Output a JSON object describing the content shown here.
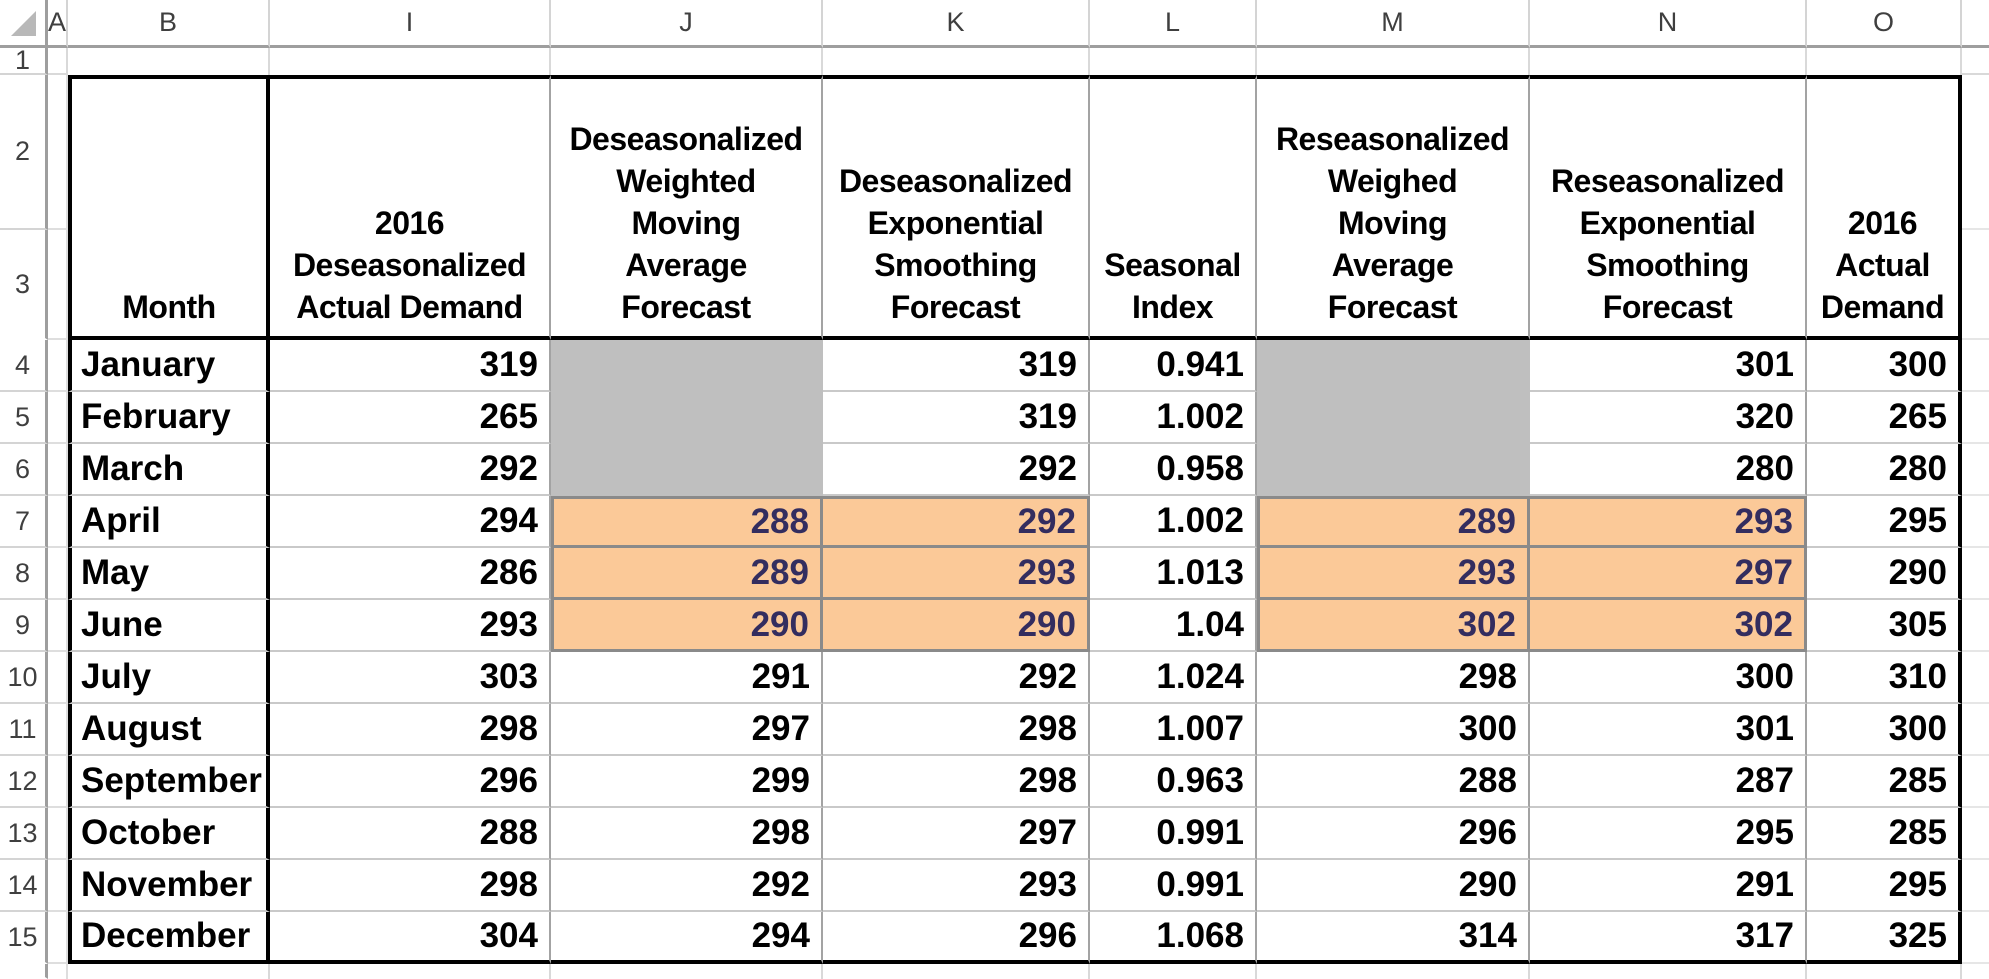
{
  "sheet": {
    "colors": {
      "gray_fill": "#bfbfbf",
      "orange_fill": "#fbc998",
      "orange_text": "#332d5f"
    },
    "column_letters": [
      "A",
      "B",
      "I",
      "J",
      "K",
      "L",
      "M",
      "N",
      "O"
    ],
    "row_labels": {
      "r1": "1",
      "r2": "2",
      "r3": "3"
    },
    "headers": {
      "b": "Month",
      "i": "2016\nDeseasonalized\nActual Demand",
      "j": "Deseasonalized\nWeighted\nMoving\nAverage\nForecast",
      "k": "Deseasonalized\nExponential\nSmoothing\nForecast",
      "l": "Seasonal\nIndex",
      "m": "Reseasonalized\nWeighed\nMoving\nAverage\nForecast",
      "n": "Reseasonalized\nExponential\nSmoothing\nForecast",
      "o": "2016\nActual\nDemand"
    },
    "rows": [
      {
        "num": "4",
        "month": "January",
        "values": {
          "i": "319",
          "j": "",
          "k": "319",
          "l": "0.941",
          "m": "",
          "n": "301",
          "o": "300"
        },
        "fills": {
          "j": "gray",
          "m": "gray"
        }
      },
      {
        "num": "5",
        "month": "February",
        "values": {
          "i": "265",
          "j": "",
          "k": "319",
          "l": "1.002",
          "m": "",
          "n": "320",
          "o": "265"
        },
        "fills": {
          "j": "gray",
          "m": "gray"
        }
      },
      {
        "num": "6",
        "month": "March",
        "values": {
          "i": "292",
          "j": "",
          "k": "292",
          "l": "0.958",
          "m": "",
          "n": "280",
          "o": "280"
        },
        "fills": {
          "j": "gray",
          "m": "gray"
        }
      },
      {
        "num": "7",
        "month": "April",
        "values": {
          "i": "294",
          "j": "288",
          "k": "292",
          "l": "1.002",
          "m": "289",
          "n": "293",
          "o": "295"
        },
        "fills": {
          "j": "orange",
          "k": "orange",
          "m": "orange",
          "n": "orange"
        }
      },
      {
        "num": "8",
        "month": "May",
        "values": {
          "i": "286",
          "j": "289",
          "k": "293",
          "l": "1.013",
          "m": "293",
          "n": "297",
          "o": "290"
        },
        "fills": {
          "j": "orange",
          "k": "orange",
          "m": "orange",
          "n": "orange"
        }
      },
      {
        "num": "9",
        "month": "June",
        "values": {
          "i": "293",
          "j": "290",
          "k": "290",
          "l": "1.04",
          "m": "302",
          "n": "302",
          "o": "305"
        },
        "fills": {
          "j": "orange",
          "k": "orange",
          "m": "orange",
          "n": "orange"
        }
      },
      {
        "num": "10",
        "month": "July",
        "values": {
          "i": "303",
          "j": "291",
          "k": "292",
          "l": "1.024",
          "m": "298",
          "n": "300",
          "o": "310"
        },
        "fills": {}
      },
      {
        "num": "11",
        "month": "August",
        "values": {
          "i": "298",
          "j": "297",
          "k": "298",
          "l": "1.007",
          "m": "300",
          "n": "301",
          "o": "300"
        },
        "fills": {}
      },
      {
        "num": "12",
        "month": "September",
        "values": {
          "i": "296",
          "j": "299",
          "k": "298",
          "l": "0.963",
          "m": "288",
          "n": "287",
          "o": "285"
        },
        "fills": {}
      },
      {
        "num": "13",
        "month": "October",
        "values": {
          "i": "288",
          "j": "298",
          "k": "297",
          "l": "0.991",
          "m": "296",
          "n": "295",
          "o": "285"
        },
        "fills": {}
      },
      {
        "num": "14",
        "month": "November",
        "values": {
          "i": "298",
          "j": "292",
          "k": "293",
          "l": "0.991",
          "m": "290",
          "n": "291",
          "o": "295"
        },
        "fills": {}
      },
      {
        "num": "15",
        "month": "December",
        "values": {
          "i": "304",
          "j": "294",
          "k": "296",
          "l": "1.068",
          "m": "314",
          "n": "317",
          "o": "325"
        },
        "fills": {}
      }
    ]
  }
}
